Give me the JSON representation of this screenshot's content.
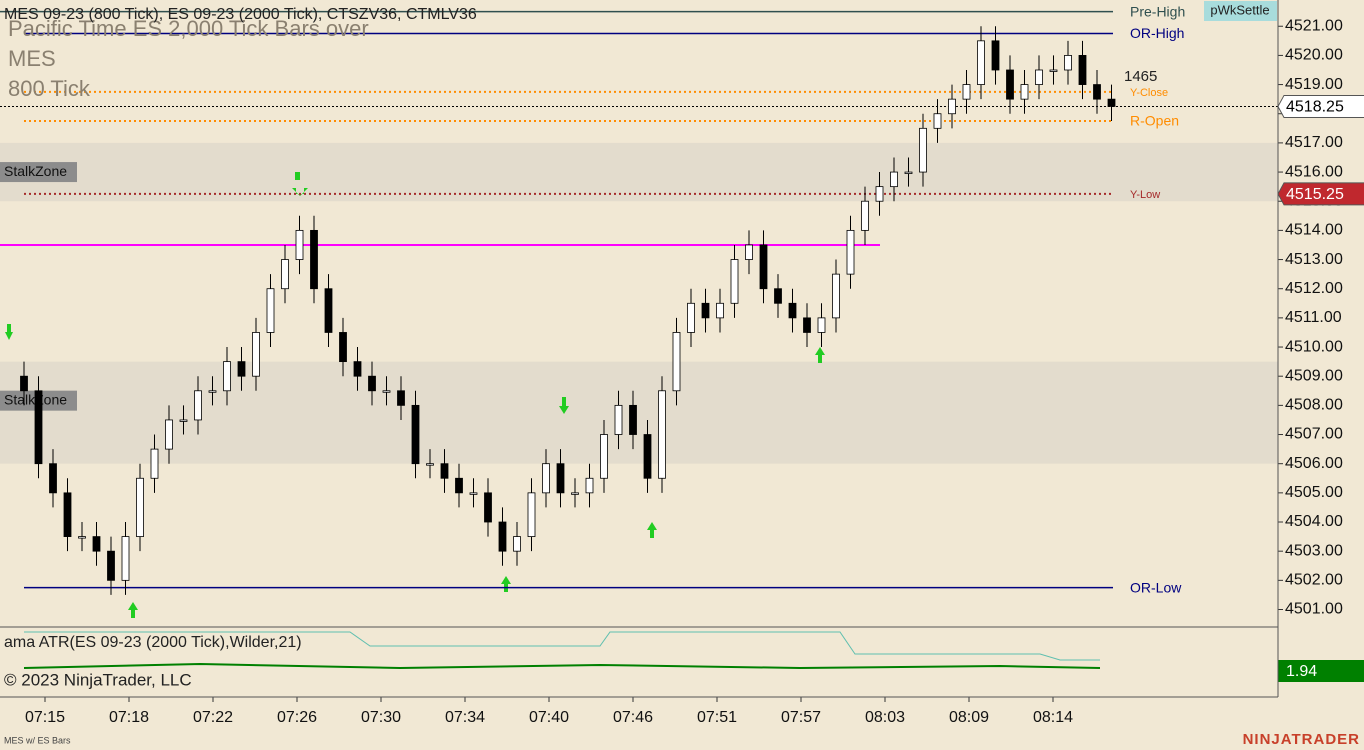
{
  "chart_data": {
    "type": "candlestick",
    "title": "MES 09-23 (800 Tick), ES 09-23 (2000 Tick), CTSZV36, CTMLV36",
    "watermark": [
      "Pacific Time ES 2,000 Tick Bars over",
      "MES",
      "800 Tick"
    ],
    "corner_label": "pWkSettle",
    "volume_label": "1465",
    "open": [
      4509,
      4508.5,
      4506,
      4505,
      4503.5,
      4503.5,
      4503,
      4502,
      4503.5,
      4505.5,
      4506.5,
      4507.5,
      4507.5,
      4508.5,
      4508.5,
      4509.5,
      4509,
      4510.5,
      4512,
      4513,
      4514,
      4512,
      4510.5,
      4509.5,
      4509,
      4508.5,
      4508.5,
      4508,
      4506,
      4506,
      4505.5,
      4505,
      4505,
      4504,
      4503,
      4503.5,
      4505,
      4506,
      4505,
      4505,
      4505.5,
      4507,
      4508,
      4507,
      4505.5,
      4508.5,
      4510.5,
      4511.5,
      4511,
      4511.5,
      4513,
      4513.5,
      4512,
      4511.5,
      4511,
      4510.5,
      4511,
      4512.5,
      4514,
      4515,
      4515.5,
      4516,
      4516,
      4517.5,
      4518,
      4518.5,
      4519,
      4520.5,
      4519.5,
      4518.5,
      4519,
      4519.5,
      4519.5,
      4520,
      4519,
      4518.5
    ],
    "high": [
      4509.5,
      4509,
      4506.5,
      4505.5,
      4504,
      4504,
      4503.5,
      4504,
      4506,
      4507,
      4508,
      4508,
      4509,
      4509,
      4510,
      4510,
      4511,
      4512.5,
      4513.5,
      4514.5,
      4514.5,
      4512.5,
      4511,
      4510,
      4509.5,
      4509,
      4509,
      4508.5,
      4506.5,
      4506.5,
      4506,
      4505.5,
      4505.5,
      4504.5,
      4504,
      4505.5,
      4506.5,
      4506.5,
      4505.5,
      4506,
      4507.5,
      4508.5,
      4508.5,
      4507.5,
      4509,
      4511,
      4512,
      4512,
      4512,
      4513.5,
      4514,
      4514,
      4512.5,
      4512,
      4511.5,
      4511.5,
      4513,
      4514.5,
      4515.5,
      4516,
      4516.5,
      4516.5,
      4518,
      4518.5,
      4519,
      4519.5,
      4521,
      4521,
      4520,
      4519.5,
      4520,
      4520,
      4520.5,
      4520.5,
      4519.5,
      4519
    ],
    "low": [
      4508,
      4505.5,
      4504.5,
      4503,
      4503,
      4502.5,
      4501.5,
      4501.5,
      4503,
      4505,
      4506,
      4507,
      4507,
      4508,
      4508,
      4508.5,
      4508.5,
      4510,
      4511.5,
      4512.5,
      4511.5,
      4510,
      4509,
      4508.5,
      4508,
      4508,
      4507.5,
      4505.5,
      4505.5,
      4505,
      4504.5,
      4504.5,
      4503.5,
      4502.5,
      4502.5,
      4503,
      4504.5,
      4504.5,
      4504.5,
      4504.5,
      4505,
      4506.5,
      4506.5,
      4505,
      4505,
      4508,
      4510,
      4510.5,
      4510.5,
      4511,
      4512.5,
      4511.5,
      4511,
      4510.5,
      4510,
      4510,
      4510.5,
      4512,
      4513.5,
      4514.5,
      4515,
      4515.5,
      4515.5,
      4517,
      4517.5,
      4518,
      4518.5,
      4519,
      4518,
      4518,
      4518.5,
      4519,
      4519,
      4518.5,
      4518,
      4517.75
    ],
    "close": [
      4508.5,
      4506,
      4505,
      4503.5,
      4503.5,
      4503,
      4502,
      4503.5,
      4505.5,
      4506.5,
      4507.5,
      4507.5,
      4508.5,
      4508.5,
      4509.5,
      4509,
      4510.5,
      4512,
      4513,
      4514,
      4512,
      4510.5,
      4509.5,
      4509,
      4508.5,
      4508.5,
      4508,
      4506,
      4506,
      4505.5,
      4505,
      4505,
      4504,
      4503,
      4503.5,
      4505,
      4506,
      4505,
      4505,
      4505.5,
      4507,
      4508,
      4507,
      4505.5,
      4508.5,
      4510.5,
      4511.5,
      4511,
      4511.5,
      4513,
      4513.5,
      4512,
      4511.5,
      4511,
      4510.5,
      4511,
      4512.5,
      4514,
      4515,
      4515.5,
      4516,
      4516,
      4517.5,
      4518,
      4518.5,
      4519,
      4520.5,
      4519.5,
      4518.5,
      4519,
      4519.5,
      4519.5,
      4520,
      4519,
      4518.5,
      4518.25
    ],
    "up_color": "#ffffff",
    "down_color": "#000000",
    "ylim": [
      4500.4,
      4521.9
    ],
    "yticks": [
      {
        "value": 4501,
        "label": "4501.00"
      },
      {
        "value": 4502,
        "label": "4502.00"
      },
      {
        "value": 4503,
        "label": "4503.00"
      },
      {
        "value": 4504,
        "label": "4504.00"
      },
      {
        "value": 4505,
        "label": "4505.00"
      },
      {
        "value": 4506,
        "label": "4506.00"
      },
      {
        "value": 4507,
        "label": "4507.00"
      },
      {
        "value": 4508,
        "label": "4508.00"
      },
      {
        "value": 4509,
        "label": "4509.00"
      },
      {
        "value": 4510,
        "label": "4510.00"
      },
      {
        "value": 4511,
        "label": "4511.00"
      },
      {
        "value": 4512,
        "label": "4512.00"
      },
      {
        "value": 4513,
        "label": "4513.00"
      },
      {
        "value": 4514,
        "label": "4514.00"
      },
      {
        "value": 4515,
        "label": "4515.00"
      },
      {
        "value": 4516,
        "label": "4516.00"
      },
      {
        "value": 4517,
        "label": "4517.00"
      },
      {
        "value": 4518,
        "label": "4518.00"
      },
      {
        "value": 4519,
        "label": "4519.00"
      },
      {
        "value": 4520,
        "label": "4520.00"
      },
      {
        "value": 4521,
        "label": "4521.00"
      }
    ],
    "time_labels": [
      "07:15",
      "07:18",
      "07:22",
      "07:26",
      "07:30",
      "07:34",
      "07:40",
      "07:46",
      "07:51",
      "07:57",
      "08:03",
      "08:09",
      "08:14"
    ],
    "levels": [
      {
        "name": "Pre-High",
        "value": 4521.5,
        "color": "#2f4f4f",
        "style": "solid"
      },
      {
        "name": "OR-High",
        "value": 4520.75,
        "color": "#000080",
        "style": "solid"
      },
      {
        "name": "Y-Close",
        "value": 4518.75,
        "color": "#ff8c00",
        "style": "dotted"
      },
      {
        "name": "R-Open",
        "value": 4517.75,
        "color": "#ff8c00",
        "style": "dotted"
      },
      {
        "name": "Y-Low",
        "value": 4515.25,
        "color": "#a52a2a",
        "style": "dotted"
      },
      {
        "name": "OR-Low",
        "value": 4501.75,
        "color": "#000080",
        "style": "solid"
      }
    ],
    "extra_line": {
      "value": 4513.5,
      "color": "#ff00ff"
    },
    "zones": [
      {
        "label": "StalkZone",
        "from": 4515,
        "to": 4517
      },
      {
        "label": "StalkZone",
        "from": 4506,
        "to": 4509.5
      }
    ],
    "last_price": 4518.25,
    "low_badge": 4515.25,
    "indicator": {
      "title": "ama ATR(ES 09-23 (2000 Tick),Wilder,21)",
      "value": 1.94,
      "color": "#008000"
    },
    "copyright": "© 2023 NinjaTrader, LLC",
    "footer_left": "MES w/ ES Bars",
    "logo": "NINJATRADER"
  }
}
